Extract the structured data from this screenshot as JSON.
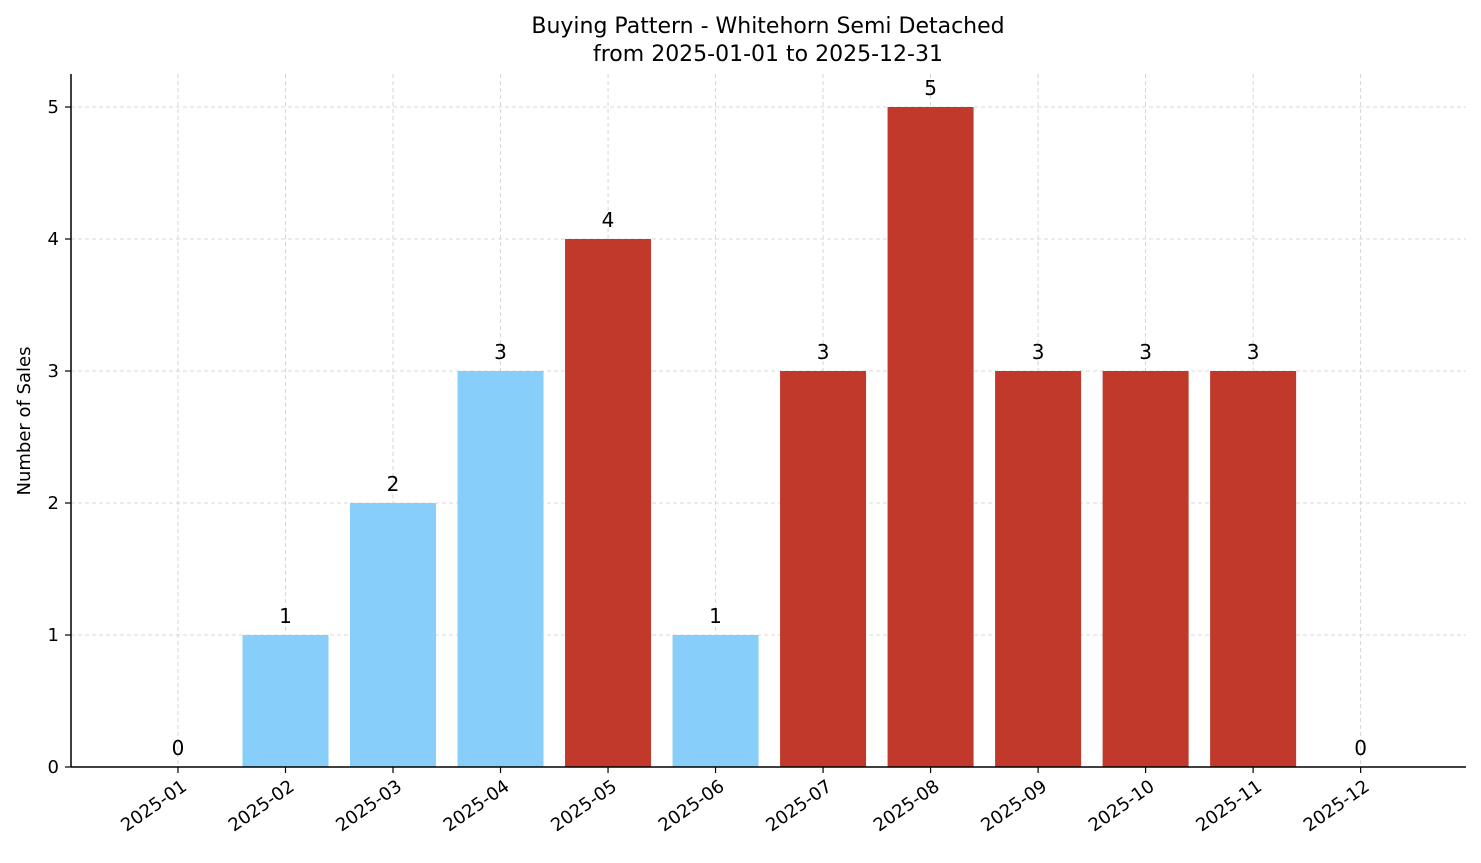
{
  "chart_data": {
    "type": "bar",
    "title": "Buying Pattern - Whitehorn Semi Detached",
    "subtitle": "from 2025-01-01 to 2025-12-31",
    "xlabel": "",
    "ylabel": "Number of Sales",
    "categories": [
      "2025-01",
      "2025-02",
      "2025-03",
      "2025-04",
      "2025-05",
      "2025-06",
      "2025-07",
      "2025-08",
      "2025-09",
      "2025-10",
      "2025-11",
      "2025-12"
    ],
    "values": [
      0,
      1,
      2,
      3,
      4,
      1,
      3,
      5,
      3,
      3,
      3,
      0
    ],
    "bar_colors": [
      "#87CEFA",
      "#87CEFA",
      "#87CEFA",
      "#87CEFA",
      "#C0392B",
      "#87CEFA",
      "#C0392B",
      "#C0392B",
      "#C0392B",
      "#C0392B",
      "#C0392B",
      "#87CEFA"
    ],
    "data_labels": [
      "0",
      "1",
      "2",
      "3",
      "4",
      "1",
      "3",
      "5",
      "3",
      "3",
      "3",
      "0"
    ],
    "ylim": [
      0,
      5.25
    ],
    "yticks": [
      0,
      1,
      2,
      3,
      4,
      5
    ],
    "grid": true,
    "legend": "none"
  }
}
